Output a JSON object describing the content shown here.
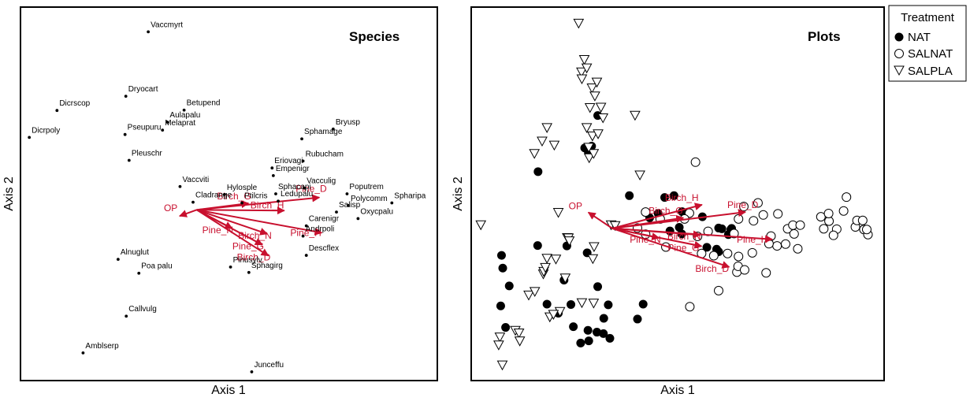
{
  "colors": {
    "env": "#c8102e",
    "points": "#000000",
    "background": "#ffffff"
  },
  "chart_data": [
    {
      "type": "scatter",
      "title": "Species",
      "xlabel": "Axis 1",
      "ylabel": "Axis 2",
      "xlim": [
        0,
        1
      ],
      "ylim": [
        0,
        1
      ],
      "grid": false,
      "species": [
        {
          "label": "Vaccmyrt",
          "x": 0.302,
          "y": 0.945
        },
        {
          "label": "Dryocart",
          "x": 0.247,
          "y": 0.768
        },
        {
          "label": "Dicrscop",
          "x": 0.078,
          "y": 0.729
        },
        {
          "label": "Betupend",
          "x": 0.39,
          "y": 0.73
        },
        {
          "label": "Aulapalu",
          "x": 0.349,
          "y": 0.697
        },
        {
          "label": "Melaprat",
          "x": 0.337,
          "y": 0.675
        },
        {
          "label": "Pseupuru",
          "x": 0.245,
          "y": 0.663
        },
        {
          "label": "Dicrpoly",
          "x": 0.01,
          "y": 0.655
        },
        {
          "label": "Bryusp",
          "x": 0.756,
          "y": 0.678
        },
        {
          "label": "Sphamage",
          "x": 0.679,
          "y": 0.651
        },
        {
          "label": "Pleuschr",
          "x": 0.255,
          "y": 0.592
        },
        {
          "label": "Rubucham",
          "x": 0.682,
          "y": 0.59
        },
        {
          "label": "Eriovagi",
          "x": 0.606,
          "y": 0.571
        },
        {
          "label": "Empenigr",
          "x": 0.609,
          "y": 0.55
        },
        {
          "label": "Vaccviti",
          "x": 0.38,
          "y": 0.52
        },
        {
          "label": "Vacculig",
          "x": 0.685,
          "y": 0.516
        },
        {
          "label": "Sphacapi",
          "x": 0.615,
          "y": 0.5
        },
        {
          "label": "Poputrem",
          "x": 0.79,
          "y": 0.5
        },
        {
          "label": "Hylosple",
          "x": 0.489,
          "y": 0.498
        },
        {
          "label": "Ledupalu",
          "x": 0.621,
          "y": 0.48
        },
        {
          "label": "Spharipa",
          "x": 0.9,
          "y": 0.475
        },
        {
          "label": "Polycomm",
          "x": 0.793,
          "y": 0.468
        },
        {
          "label": "Ptilcris",
          "x": 0.532,
          "y": 0.475
        },
        {
          "label": "Cladrange",
          "x": 0.412,
          "y": 0.477
        },
        {
          "label": "Salisp",
          "x": 0.764,
          "y": 0.45
        },
        {
          "label": "Oxycpalu",
          "x": 0.817,
          "y": 0.432
        },
        {
          "label": "Carenigr",
          "x": 0.69,
          "y": 0.412
        },
        {
          "label": "Andrpoli",
          "x": 0.682,
          "y": 0.384
        },
        {
          "label": "Descflex",
          "x": 0.69,
          "y": 0.331
        },
        {
          "label": "Alnuglut",
          "x": 0.228,
          "y": 0.32
        },
        {
          "label": "Pinusylv",
          "x": 0.504,
          "y": 0.299
        },
        {
          "label": "Poa palu",
          "x": 0.279,
          "y": 0.282
        },
        {
          "label": "Sphagirg",
          "x": 0.549,
          "y": 0.284
        },
        {
          "label": "Callvulg",
          "x": 0.248,
          "y": 0.164
        },
        {
          "label": "Amblserp",
          "x": 0.142,
          "y": 0.063
        },
        {
          "label": "Junceffu",
          "x": 0.556,
          "y": 0.011
        }
      ],
      "vectors": [
        {
          "label": "OP",
          "x": 0.379,
          "y": 0.439
        },
        {
          "label": "Birch_G",
          "x": 0.548,
          "y": 0.474
        },
        {
          "label": "Birch_H",
          "x": 0.636,
          "y": 0.454
        },
        {
          "label": "Pine_D",
          "x": 0.722,
          "y": 0.49
        },
        {
          "label": "Pine_N",
          "x": 0.508,
          "y": 0.405
        },
        {
          "label": "Birch_N",
          "x": 0.594,
          "y": 0.39
        },
        {
          "label": "Pine_H",
          "x": 0.728,
          "y": 0.393
        },
        {
          "label": "Pine_G",
          "x": 0.582,
          "y": 0.36
        },
        {
          "label": "Birch_D",
          "x": 0.597,
          "y": 0.33
        }
      ]
    },
    {
      "type": "scatter",
      "title": "Plots",
      "xlabel": "Axis 1",
      "ylabel": "Axis 2",
      "xlim": [
        0,
        1
      ],
      "ylim": [
        0,
        1
      ],
      "grid": false,
      "legend": {
        "title": "Treatment",
        "position": "top-right-outside",
        "items": [
          {
            "label": "NAT",
            "marker": "filled-circle"
          },
          {
            "label": "SALNAT",
            "marker": "open-circle"
          },
          {
            "label": "SALPLA",
            "marker": "down-triangle"
          }
        ]
      },
      "series": [
        {
          "name": "NAT",
          "marker": "filled-circle",
          "points": [
            [
              0.302,
              0.715
            ],
            [
              0.27,
              0.626
            ],
            [
              0.279,
              0.615
            ],
            [
              0.287,
              0.631
            ],
            [
              0.155,
              0.561
            ],
            [
              0.38,
              0.495
            ],
            [
              0.467,
              0.49
            ],
            [
              0.49,
              0.495
            ],
            [
              0.43,
              0.434
            ],
            [
              0.451,
              0.446
            ],
            [
              0.51,
              0.451
            ],
            [
              0.503,
              0.408
            ],
            [
              0.56,
              0.437
            ],
            [
              0.6,
              0.406
            ],
            [
              0.63,
              0.402
            ],
            [
              0.624,
              0.388
            ],
            [
              0.154,
              0.358
            ],
            [
              0.226,
              0.357
            ],
            [
              0.065,
              0.331
            ],
            [
              0.276,
              0.338
            ],
            [
              0.068,
              0.296
            ],
            [
              0.219,
              0.263
            ],
            [
              0.302,
              0.245
            ],
            [
              0.084,
              0.247
            ],
            [
              0.177,
              0.197
            ],
            [
              0.236,
              0.196
            ],
            [
              0.328,
              0.195
            ],
            [
              0.414,
              0.197
            ],
            [
              0.063,
              0.192
            ],
            [
              0.205,
              0.172
            ],
            [
              0.4,
              0.156
            ],
            [
              0.317,
              0.158
            ],
            [
              0.242,
              0.135
            ],
            [
              0.278,
              0.125
            ],
            [
              0.3,
              0.12
            ],
            [
              0.316,
              0.116
            ],
            [
              0.332,
              0.103
            ],
            [
              0.075,
              0.133
            ],
            [
              0.26,
              0.09
            ],
            [
              0.28,
              0.096
            ],
            [
              0.608,
              0.404
            ],
            [
              0.632,
              0.405
            ],
            [
              0.571,
              0.353
            ],
            [
              0.6,
              0.341
            ],
            [
              0.595,
              0.348
            ],
            [
              0.509,
              0.39
            ],
            [
              0.48,
              0.398
            ]
          ]
        },
        {
          "name": "SALNAT",
          "marker": "open-circle",
          "points": [
            [
              0.543,
              0.587
            ],
            [
              0.528,
              0.447
            ],
            [
              0.516,
              0.431
            ],
            [
              0.548,
              0.383
            ],
            [
              0.574,
              0.397
            ],
            [
              0.638,
              0.391
            ],
            [
              0.649,
              0.431
            ],
            [
              0.662,
              0.465
            ],
            [
              0.697,
              0.475
            ],
            [
              0.746,
              0.445
            ],
            [
              0.77,
              0.404
            ],
            [
              0.783,
              0.414
            ],
            [
              0.801,
              0.414
            ],
            [
              0.786,
              0.39
            ],
            [
              0.765,
              0.362
            ],
            [
              0.795,
              0.349
            ],
            [
              0.744,
              0.357
            ],
            [
              0.724,
              0.363
            ],
            [
              0.729,
              0.384
            ],
            [
              0.686,
              0.426
            ],
            [
              0.71,
              0.442
            ],
            [
              0.683,
              0.338
            ],
            [
              0.649,
              0.328
            ],
            [
              0.622,
              0.336
            ],
            [
              0.645,
              0.285
            ],
            [
              0.648,
              0.301
            ],
            [
              0.664,
              0.291
            ],
            [
              0.717,
              0.283
            ],
            [
              0.588,
              0.33
            ],
            [
              0.558,
              0.336
            ],
            [
              0.6,
              0.234
            ],
            [
              0.915,
              0.491
            ],
            [
              0.908,
              0.453
            ],
            [
              0.891,
              0.403
            ],
            [
              0.883,
              0.386
            ],
            [
              0.859,
              0.404
            ],
            [
              0.937,
              0.409
            ],
            [
              0.941,
              0.427
            ],
            [
              0.958,
              0.402
            ],
            [
              0.955,
              0.427
            ],
            [
              0.968,
              0.388
            ],
            [
              0.965,
              0.402
            ],
            [
              0.872,
              0.425
            ],
            [
              0.852,
              0.437
            ],
            [
              0.871,
              0.446
            ],
            [
              0.456,
              0.431
            ],
            [
              0.42,
              0.389
            ],
            [
              0.47,
              0.354
            ],
            [
              0.42,
              0.45
            ],
            [
              0.4,
              0.406
            ],
            [
              0.529,
              0.19
            ]
          ]
        },
        {
          "name": "SALPLA",
          "marker": "down-triangle",
          "points": [
            [
              0.255,
              0.969
            ],
            [
              0.269,
              0.869
            ],
            [
              0.262,
              0.835
            ],
            [
              0.275,
              0.846
            ],
            [
              0.263,
              0.816
            ],
            [
              0.288,
              0.791
            ],
            [
              0.3,
              0.807
            ],
            [
              0.295,
              0.769
            ],
            [
              0.31,
              0.738
            ],
            [
              0.283,
              0.737
            ],
            [
              0.315,
              0.709
            ],
            [
              0.275,
              0.682
            ],
            [
              0.289,
              0.659
            ],
            [
              0.303,
              0.665
            ],
            [
              0.394,
              0.716
            ],
            [
              0.177,
              0.682
            ],
            [
              0.146,
              0.611
            ],
            [
              0.195,
              0.634
            ],
            [
              0.165,
              0.645
            ],
            [
              0.281,
              0.599
            ],
            [
              0.292,
              0.611
            ],
            [
              0.28,
              0.628
            ],
            [
              0.406,
              0.552
            ],
            [
              0.014,
              0.415
            ],
            [
              0.205,
              0.449
            ],
            [
              0.335,
              0.415
            ],
            [
              0.345,
              0.413
            ],
            [
              0.227,
              0.38
            ],
            [
              0.23,
              0.379
            ],
            [
              0.232,
              0.371
            ],
            [
              0.293,
              0.355
            ],
            [
              0.29,
              0.322
            ],
            [
              0.177,
              0.323
            ],
            [
              0.199,
              0.321
            ],
            [
              0.168,
              0.28
            ],
            [
              0.169,
              0.287
            ],
            [
              0.173,
              0.298
            ],
            [
              0.222,
              0.269
            ],
            [
              0.263,
              0.201
            ],
            [
              0.292,
              0.2
            ],
            [
              0.209,
              0.177
            ],
            [
              0.184,
              0.162
            ],
            [
              0.099,
              0.125
            ],
            [
              0.108,
              0.118
            ],
            [
              0.11,
              0.096
            ],
            [
              0.061,
              0.107
            ],
            [
              0.058,
              0.085
            ],
            [
              0.067,
              0.03
            ],
            [
              0.132,
              0.222
            ],
            [
              0.147,
              0.232
            ],
            [
              0.193,
              0.169
            ]
          ]
        }
      ],
      "vectors": [
        {
          "label": "OP",
          "x": 0.279,
          "y": 0.449
        },
        {
          "label": "Birch_G",
          "x": 0.513,
          "y": 0.434
        },
        {
          "label": "Birch_H",
          "x": 0.559,
          "y": 0.47
        },
        {
          "label": "Pine_D",
          "x": 0.666,
          "y": 0.45
        },
        {
          "label": "Pine_N",
          "x": 0.453,
          "y": 0.379
        },
        {
          "label": "Birch_N",
          "x": 0.555,
          "y": 0.387
        },
        {
          "label": "Pine_H",
          "x": 0.732,
          "y": 0.375
        },
        {
          "label": "Pine_G",
          "x": 0.558,
          "y": 0.356
        },
        {
          "label": "Birch_D",
          "x": 0.626,
          "y": 0.299
        }
      ]
    }
  ]
}
